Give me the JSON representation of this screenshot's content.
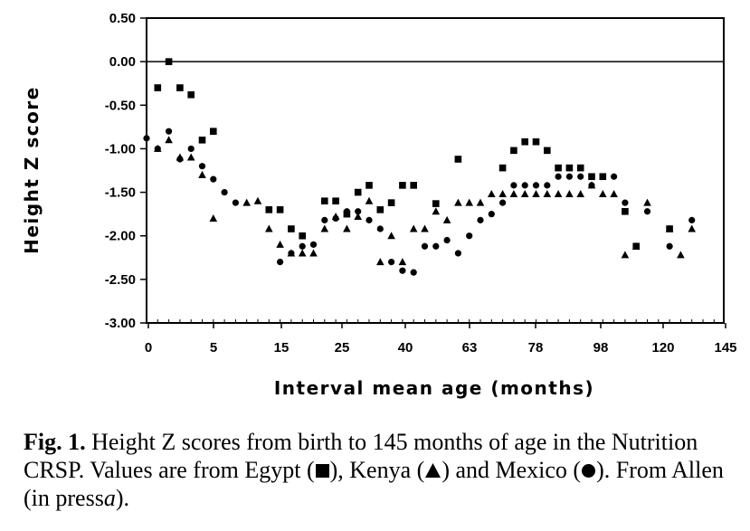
{
  "chart_data": {
    "type": "scatter",
    "title": "",
    "xlabel": "Interval mean age (months)",
    "ylabel": "Height Z score",
    "ylim": [
      -3.0,
      0.5
    ],
    "x_tick_labels": [
      "0",
      "5",
      "15",
      "25",
      "40",
      "63",
      "78",
      "98",
      "120",
      "145"
    ],
    "y_tick_labels": [
      "0.50",
      "0.00",
      "-0.50",
      "-1.00",
      "-1.50",
      "-2.00",
      "-2.50",
      "-3.00"
    ],
    "grid": false,
    "reference_line": 0.0,
    "x_note": "interval index 0-52 along axis; tick labels show ages in months",
    "series": [
      {
        "name": "Egypt",
        "marker": "square",
        "points": [
          [
            1,
            -0.3
          ],
          [
            2,
            0.0
          ],
          [
            3,
            -0.3
          ],
          [
            4,
            -0.38
          ],
          [
            5,
            -0.9
          ],
          [
            6,
            -0.8
          ],
          [
            11,
            -1.7
          ],
          [
            12,
            -1.7
          ],
          [
            13,
            -1.92
          ],
          [
            14,
            -2.0
          ],
          [
            16,
            -1.6
          ],
          [
            17,
            -1.6
          ],
          [
            18,
            -1.75
          ],
          [
            19,
            -1.5
          ],
          [
            20,
            -1.42
          ],
          [
            21,
            -1.7
          ],
          [
            22,
            -1.62
          ],
          [
            23,
            -1.42
          ],
          [
            24,
            -1.42
          ],
          [
            26,
            -1.63
          ],
          [
            28,
            -1.12
          ],
          [
            32,
            -1.22
          ],
          [
            33,
            -1.02
          ],
          [
            34,
            -0.92
          ],
          [
            35,
            -0.92
          ],
          [
            36,
            -1.02
          ],
          [
            37,
            -1.22
          ],
          [
            38,
            -1.22
          ],
          [
            39,
            -1.22
          ],
          [
            40,
            -1.32
          ],
          [
            41,
            -1.32
          ],
          [
            43,
            -1.72
          ],
          [
            44,
            -2.12
          ],
          [
            47,
            -1.92
          ]
        ]
      },
      {
        "name": "Kenya",
        "marker": "triangle",
        "points": [
          [
            1,
            -1.0
          ],
          [
            2,
            -0.9
          ],
          [
            3,
            -1.1
          ],
          [
            4,
            -1.1
          ],
          [
            5,
            -1.3
          ],
          [
            6,
            -1.8
          ],
          [
            9,
            -1.62
          ],
          [
            10,
            -1.6
          ],
          [
            11,
            -1.92
          ],
          [
            12,
            -2.1
          ],
          [
            13,
            -2.2
          ],
          [
            14,
            -2.2
          ],
          [
            15,
            -2.2
          ],
          [
            16,
            -1.92
          ],
          [
            17,
            -1.78
          ],
          [
            18,
            -1.92
          ],
          [
            19,
            -1.78
          ],
          [
            20,
            -1.6
          ],
          [
            21,
            -2.3
          ],
          [
            22,
            -2.0
          ],
          [
            23,
            -2.3
          ],
          [
            24,
            -1.92
          ],
          [
            25,
            -1.92
          ],
          [
            26,
            -1.72
          ],
          [
            27,
            -1.82
          ],
          [
            28,
            -1.62
          ],
          [
            29,
            -1.62
          ],
          [
            30,
            -1.62
          ],
          [
            31,
            -1.52
          ],
          [
            32,
            -1.52
          ],
          [
            33,
            -1.52
          ],
          [
            34,
            -1.52
          ],
          [
            35,
            -1.52
          ],
          [
            36,
            -1.52
          ],
          [
            37,
            -1.52
          ],
          [
            38,
            -1.52
          ],
          [
            39,
            -1.52
          ],
          [
            40,
            -1.42
          ],
          [
            41,
            -1.52
          ],
          [
            42,
            -1.52
          ],
          [
            43,
            -2.22
          ],
          [
            44,
            -2.12
          ],
          [
            45,
            -1.62
          ],
          [
            47,
            -1.92
          ],
          [
            48,
            -2.22
          ],
          [
            49,
            -1.92
          ]
        ]
      },
      {
        "name": "Mexico",
        "marker": "circle",
        "points": [
          [
            0,
            -0.88
          ],
          [
            1,
            -1.0
          ],
          [
            2,
            -0.8
          ],
          [
            3,
            -1.12
          ],
          [
            4,
            -1.0
          ],
          [
            5,
            -1.2
          ],
          [
            6,
            -1.35
          ],
          [
            7,
            -1.5
          ],
          [
            8,
            -1.62
          ],
          [
            12,
            -2.3
          ],
          [
            13,
            -2.2
          ],
          [
            14,
            -2.12
          ],
          [
            15,
            -2.1
          ],
          [
            16,
            -1.82
          ],
          [
            17,
            -1.8
          ],
          [
            18,
            -1.72
          ],
          [
            19,
            -1.72
          ],
          [
            20,
            -1.82
          ],
          [
            21,
            -1.92
          ],
          [
            22,
            -2.3
          ],
          [
            23,
            -2.4
          ],
          [
            24,
            -2.42
          ],
          [
            25,
            -2.12
          ],
          [
            26,
            -2.12
          ],
          [
            27,
            -2.05
          ],
          [
            28,
            -2.2
          ],
          [
            29,
            -2.0
          ],
          [
            30,
            -1.82
          ],
          [
            31,
            -1.75
          ],
          [
            32,
            -1.62
          ],
          [
            33,
            -1.42
          ],
          [
            34,
            -1.42
          ],
          [
            35,
            -1.42
          ],
          [
            36,
            -1.42
          ],
          [
            37,
            -1.32
          ],
          [
            38,
            -1.32
          ],
          [
            39,
            -1.32
          ],
          [
            40,
            -1.42
          ],
          [
            41,
            -1.32
          ],
          [
            42,
            -1.32
          ],
          [
            43,
            -1.62
          ],
          [
            45,
            -1.72
          ],
          [
            47,
            -2.12
          ],
          [
            49,
            -1.82
          ]
        ]
      }
    ]
  },
  "caption": {
    "label": "Fig. 1.",
    "text_part1": " Height Z scores from birth to 145 months of age in the Nutrition CRSP. Values are from Egypt (",
    "text_part2": "), Kenya (",
    "text_part3": ") and Mexico (",
    "text_part4": "). From Allen (in press",
    "text_part5": "a",
    "text_part6": ")."
  },
  "colors": {
    "ink": "#000000",
    "background": "#ffffff"
  }
}
